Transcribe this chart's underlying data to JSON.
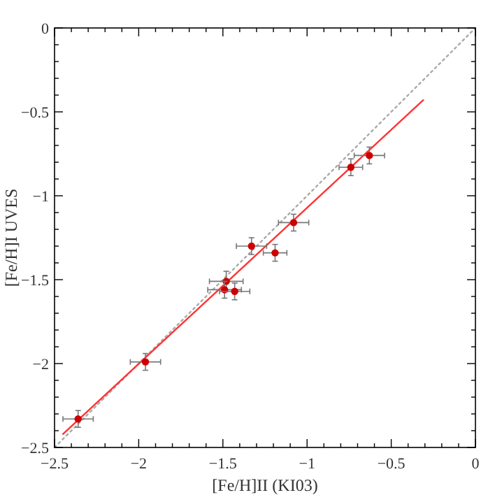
{
  "chart_data": {
    "type": "scatter",
    "xlabel": "[Fe/H]II (KI03)",
    "ylabel": "[Fe/H]I UVES",
    "xlim": [
      -2.5,
      0
    ],
    "ylim": [
      -2.5,
      0
    ],
    "xticks": [
      -2.5,
      {
        "value": -2.4,
        "label": null
      },
      {
        "value": -2.3,
        "label": null
      },
      {
        "value": -2.2,
        "label": null
      },
      {
        "value": -2.1,
        "label": null
      },
      -2,
      {
        "value": -1.9,
        "label": null
      },
      {
        "value": -1.8,
        "label": null
      },
      {
        "value": -1.7,
        "label": null
      },
      {
        "value": -1.6,
        "label": null
      },
      -1.5,
      {
        "value": -1.4,
        "label": null
      },
      {
        "value": -1.3,
        "label": null
      },
      {
        "value": -1.2,
        "label": null
      },
      {
        "value": -1.1,
        "label": null
      },
      -1,
      {
        "value": -0.9,
        "label": null
      },
      {
        "value": -0.8,
        "label": null
      },
      {
        "value": -0.7,
        "label": null
      },
      {
        "value": -0.6,
        "label": null
      },
      -0.5,
      {
        "value": -0.4,
        "label": null
      },
      {
        "value": -0.3,
        "label": null
      },
      {
        "value": -0.2,
        "label": null
      },
      {
        "value": -0.1,
        "label": null
      },
      0
    ],
    "yticks": [
      -2.5,
      {
        "value": -2.4,
        "label": null
      },
      {
        "value": -2.3,
        "label": null
      },
      {
        "value": -2.2,
        "label": null
      },
      {
        "value": -2.1,
        "label": null
      },
      -2,
      {
        "value": -1.9,
        "label": null
      },
      {
        "value": -1.8,
        "label": null
      },
      {
        "value": -1.7,
        "label": null
      },
      {
        "value": -1.6,
        "label": null
      },
      -1.5,
      {
        "value": -1.4,
        "label": null
      },
      {
        "value": -1.3,
        "label": null
      },
      {
        "value": -1.2,
        "label": null
      },
      {
        "value": -1.1,
        "label": null
      },
      -1,
      {
        "value": -0.9,
        "label": null
      },
      {
        "value": -0.8,
        "label": null
      },
      {
        "value": -0.7,
        "label": null
      },
      {
        "value": -0.6,
        "label": null
      },
      -0.5,
      {
        "value": -0.4,
        "label": null
      },
      {
        "value": -0.3,
        "label": null
      },
      {
        "value": -0.2,
        "label": null
      },
      {
        "value": -0.1,
        "label": null
      },
      0
    ],
    "grid": false,
    "series": [
      {
        "type": "line",
        "color": "#aaaaaa",
        "line_style": "dotted",
        "x": [
          -2.5,
          0
        ],
        "values": [
          -2.5,
          0
        ]
      },
      {
        "type": "line",
        "color": "#ff3333",
        "line_style": "solid",
        "x": [
          -2.45,
          -0.31
        ],
        "values": [
          -2.42,
          -0.43
        ]
      },
      {
        "color": "#cc0000",
        "marker": "circle",
        "x": [
          -2.36,
          -1.96,
          -1.48,
          -1.49,
          -1.43,
          -1.33,
          -1.19,
          -1.08,
          -0.74,
          -0.63
        ],
        "values": [
          -2.33,
          -1.99,
          -1.51,
          -1.56,
          -1.57,
          -1.3,
          -1.34,
          -1.16,
          -0.83,
          -0.76
        ],
        "errors": [
          0.05,
          0.05,
          0.06,
          0.05,
          0.05,
          0.05,
          0.05,
          0.05,
          0.05,
          0.05
        ],
        "xerrors": [
          0.09,
          0.09,
          0.1,
          0.1,
          0.09,
          0.09,
          0.07,
          0.09,
          0.07,
          0.09
        ]
      }
    ]
  }
}
